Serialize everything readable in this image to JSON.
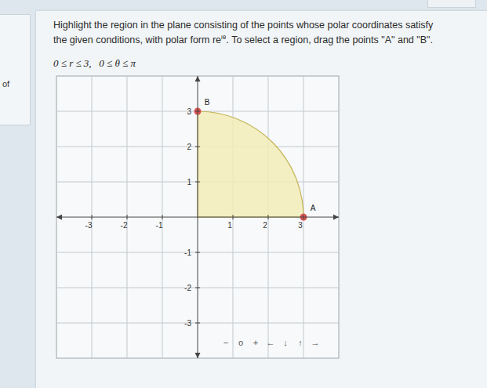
{
  "page": {
    "side_label": "of",
    "instruction_line1": "Highlight the region in the plane consisting of the points whose polar coordinates satisfy",
    "instruction_line2_before": "the given conditions, with polar form re",
    "instruction_superscript": "iθ",
    "instruction_line2_after": ". To select a region, drag the points \"A\" and \"B\".",
    "condition": "0 ≤ r ≤ 3,   0 ≤ θ ≤ π",
    "toolbar": [
      "−",
      "o",
      "+",
      "←",
      "↓",
      "↑",
      "→"
    ]
  },
  "chart_data": {
    "type": "polar_region",
    "xlim": [
      -4,
      4
    ],
    "ylim": [
      -4,
      4
    ],
    "xticks": [
      -3,
      -2,
      -1,
      1,
      2,
      3
    ],
    "yticks": [
      -3,
      -2,
      -1,
      1,
      2,
      3
    ],
    "grid": true,
    "region": {
      "r_range": [
        0,
        3
      ],
      "theta_range": [
        0,
        90
      ],
      "color": "#f3ecb8"
    },
    "points": [
      {
        "name": "A",
        "x": 3,
        "y": 0,
        "color": "#d9534f"
      },
      {
        "name": "B",
        "x": 0,
        "y": 3,
        "color": "#d9534f"
      }
    ]
  }
}
